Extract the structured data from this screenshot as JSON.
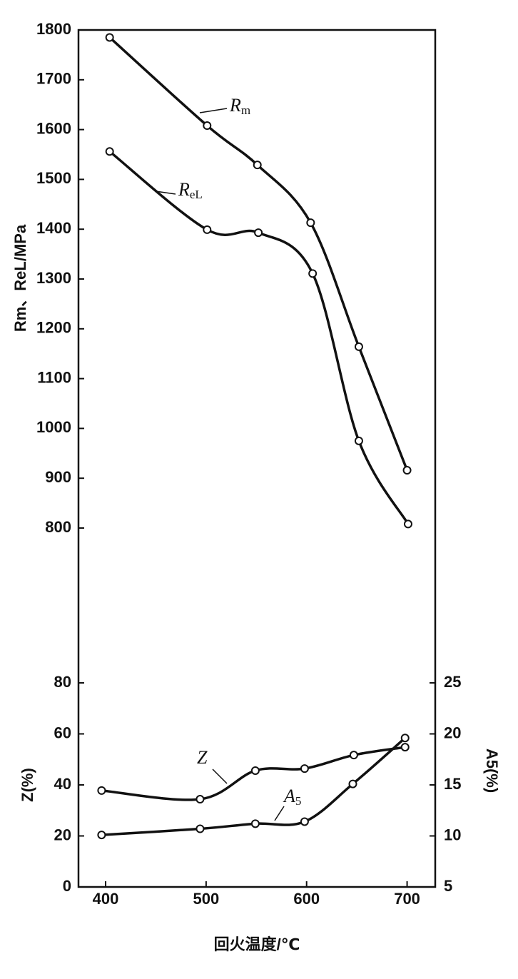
{
  "chart_data": [
    {
      "type": "line",
      "y_label": "Rm、ReL/MPa",
      "xlim": [
        373,
        728
      ],
      "ylim": [
        800,
        1800
      ],
      "yticks": [
        800,
        900,
        1000,
        1100,
        1200,
        1300,
        1400,
        1500,
        1600,
        1700,
        1800
      ],
      "series": [
        {
          "name": "Rm",
          "color": "#111111",
          "x": [
            404,
            501,
            551,
            604,
            652,
            700
          ],
          "values": [
            1785,
            1608,
            1529,
            1413,
            1164,
            916
          ]
        },
        {
          "name": "ReL",
          "color": "#111111",
          "x": [
            404,
            501,
            552,
            606,
            652,
            701
          ],
          "values": [
            1556,
            1399,
            1393,
            1311,
            975,
            808
          ]
        }
      ]
    },
    {
      "type": "line",
      "x_label": "回火温度/℃",
      "y_label": "Z(%)",
      "y2_label": "A5(%)",
      "xlim": [
        373,
        728
      ],
      "xticks": [
        400,
        500,
        600,
        700
      ],
      "ylim": [
        0,
        80
      ],
      "yticks": [
        0,
        20,
        40,
        60,
        80
      ],
      "y2lim": [
        5,
        25
      ],
      "y2ticks": [
        5,
        10,
        15,
        20,
        25
      ],
      "series": [
        {
          "name": "Z",
          "color": "#111111",
          "x": [
            396,
            494,
            549,
            598,
            647,
            698
          ],
          "values": [
            37.8,
            34.4,
            45.6,
            46.4,
            51.7,
            54.8
          ]
        },
        {
          "name": "A5",
          "color": "#111111",
          "axis": "y2",
          "x": [
            396,
            494,
            549,
            598,
            646,
            698
          ],
          "values": [
            10.1,
            10.7,
            11.2,
            11.4,
            15.1,
            19.6
          ]
        }
      ]
    }
  ]
}
